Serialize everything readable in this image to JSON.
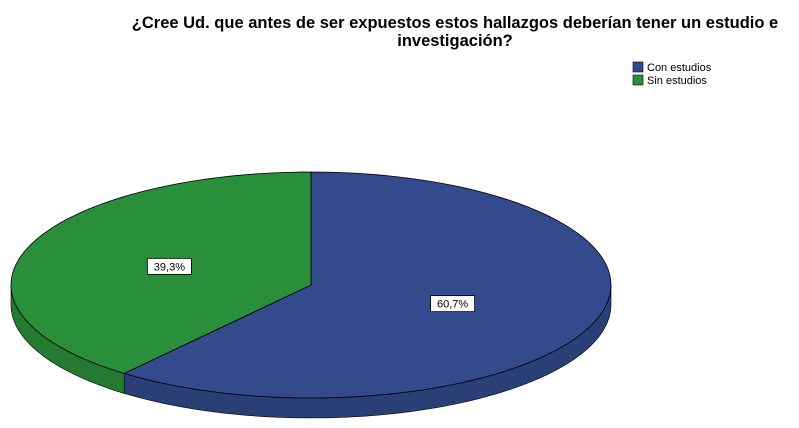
{
  "chart_data": {
    "type": "pie",
    "title": "¿Cree Ud. que antes de ser expuestos estos hallazgos deberían tener un estudio e investigación?",
    "categories": [
      "Con estudios",
      "Sin estudios"
    ],
    "values": [
      60.7,
      39.3
    ],
    "value_labels": [
      "60,7%",
      "39,3%"
    ],
    "colors": [
      "#334a8c",
      "#2a8f3a"
    ],
    "legend": "top-right"
  }
}
